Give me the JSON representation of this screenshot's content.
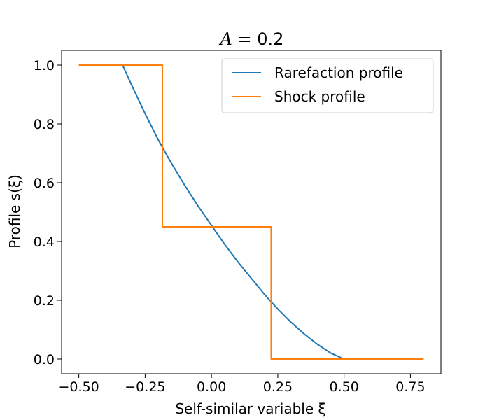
{
  "chart_data": {
    "type": "line",
    "title": "A = 0.2",
    "title_parts": {
      "var": "A",
      "rest": " = 0.2"
    },
    "xlabel": "Self-similar variable ξ",
    "ylabel": "Profile s(ξ)",
    "xlim": [
      -0.565,
      0.865
    ],
    "ylim": [
      -0.05,
      1.05
    ],
    "xticks": [
      -0.5,
      -0.25,
      0.0,
      0.25,
      0.5,
      0.75
    ],
    "xtick_labels": [
      "−0.50",
      "−0.25",
      "0.00",
      "0.25",
      "0.50",
      "0.75"
    ],
    "yticks": [
      0.0,
      0.2,
      0.4,
      0.6,
      0.8,
      1.0
    ],
    "ytick_labels": [
      "0.0",
      "0.2",
      "0.4",
      "0.6",
      "0.8",
      "1.0"
    ],
    "legend_position": "top-right",
    "series": [
      {
        "name": "Rarefaction profile",
        "color": "#1f77b4",
        "x": [
          -0.335,
          -0.3,
          -0.25,
          -0.2,
          -0.15,
          -0.1,
          -0.05,
          0.0,
          0.05,
          0.1,
          0.15,
          0.2,
          0.25,
          0.3,
          0.35,
          0.4,
          0.45,
          0.5
        ],
        "y": [
          1.0,
          0.93,
          0.835,
          0.745,
          0.665,
          0.59,
          0.52,
          0.455,
          0.39,
          0.33,
          0.275,
          0.22,
          0.17,
          0.125,
          0.085,
          0.05,
          0.02,
          0.0
        ]
      },
      {
        "name": "Shock profile",
        "color": "#ff7f0e",
        "x": [
          -0.5,
          -0.185,
          -0.185,
          0.225,
          0.225,
          0.8
        ],
        "y": [
          1.0,
          1.0,
          0.45,
          0.45,
          0.0,
          0.0
        ]
      }
    ]
  }
}
